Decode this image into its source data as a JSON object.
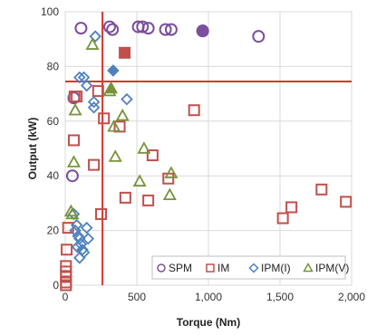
{
  "chart_data": {
    "type": "scatter",
    "title": "",
    "xlabel": "Torque (Nm)",
    "ylabel": "Output (kW)",
    "xlim": [
      0,
      2000
    ],
    "ylim": [
      0,
      100
    ],
    "xticks": [
      0,
      500,
      1000,
      1500,
      2000
    ],
    "yticks": [
      0,
      20,
      40,
      60,
      80,
      100
    ],
    "xtick_labels": [
      "0",
      "500",
      "1,000",
      "1,500",
      "2,000"
    ],
    "ytick_labels": [
      "0",
      "20",
      "40",
      "60",
      "80",
      "100"
    ],
    "grid": true,
    "legend_position": "bottom-right",
    "reference_lines": [
      {
        "orientation": "vertical",
        "x": 260,
        "color": "#d9362e"
      },
      {
        "orientation": "horizontal",
        "y": 74.5,
        "color": "#d9362e"
      }
    ],
    "series": [
      {
        "name": "SPM",
        "marker": "circle",
        "color": "#7b4f9d",
        "points": [
          [
            110,
            94
          ],
          [
            310,
            94.5
          ],
          [
            330,
            93.5
          ],
          [
            510,
            94.5
          ],
          [
            540,
            94.5
          ],
          [
            580,
            94
          ],
          [
            700,
            93.5
          ],
          [
            740,
            93.5
          ],
          [
            960,
            93
          ],
          [
            1350,
            91
          ],
          [
            60,
            68.5
          ],
          [
            50,
            40
          ]
        ]
      },
      {
        "name": "IM",
        "marker": "square",
        "color": "#c0504d",
        "points": [
          [
            60,
            53
          ],
          [
            65,
            69
          ],
          [
            80,
            69
          ],
          [
            200,
            44
          ],
          [
            230,
            71
          ],
          [
            270,
            61
          ],
          [
            380,
            58
          ],
          [
            420,
            32
          ],
          [
            580,
            31
          ],
          [
            610,
            47.5
          ],
          [
            720,
            39
          ],
          [
            900,
            64
          ],
          [
            1520,
            24.5
          ],
          [
            1580,
            28.5
          ],
          [
            1790,
            35
          ],
          [
            1960,
            30.5
          ],
          [
            250,
            26
          ],
          [
            20,
            21
          ],
          [
            10,
            13
          ],
          [
            5,
            7
          ],
          [
            5,
            5
          ],
          [
            5,
            3
          ],
          [
            5,
            1
          ],
          [
            5,
            0
          ]
        ]
      },
      {
        "name": "IPM(I)",
        "marker": "diamond",
        "color": "#4f81bd",
        "points": [
          [
            100,
            76
          ],
          [
            130,
            76
          ],
          [
            150,
            73
          ],
          [
            200,
            67
          ],
          [
            200,
            65
          ],
          [
            210,
            91
          ],
          [
            430,
            68
          ],
          [
            60,
            26
          ],
          [
            70,
            20
          ],
          [
            80,
            22
          ],
          [
            90,
            18
          ],
          [
            100,
            17
          ],
          [
            110,
            15
          ],
          [
            120,
            13
          ],
          [
            130,
            12
          ],
          [
            100,
            10
          ],
          [
            150,
            21
          ],
          [
            160,
            17
          ],
          [
            85,
            14
          ]
        ]
      },
      {
        "name": "IPM(V)",
        "marker": "triangle",
        "color": "#77933c",
        "points": [
          [
            190,
            88
          ],
          [
            70,
            64
          ],
          [
            310,
            71
          ],
          [
            340,
            58
          ],
          [
            400,
            62
          ],
          [
            350,
            47
          ],
          [
            550,
            50
          ],
          [
            520,
            38
          ],
          [
            740,
            41
          ],
          [
            730,
            33
          ],
          [
            60,
            45
          ],
          [
            50,
            26
          ],
          [
            40,
            27
          ]
        ]
      },
      {
        "name": "",
        "marker": "filled-square",
        "color": "#c0504d",
        "points": [
          [
            415,
            85
          ]
        ]
      },
      {
        "name": "",
        "marker": "filled-circle",
        "color": "#7b4f9d",
        "points": [
          [
            960,
            93
          ]
        ]
      },
      {
        "name": "",
        "marker": "filled-diamond",
        "color": "#4f81bd",
        "points": [
          [
            335,
            78.5
          ]
        ]
      },
      {
        "name": "",
        "marker": "filled-triangle",
        "color": "#77933c",
        "points": [
          [
            320,
            72
          ]
        ]
      }
    ],
    "legend": [
      "SPM",
      "IM",
      "IPM(I)",
      "IPM(V)"
    ]
  }
}
